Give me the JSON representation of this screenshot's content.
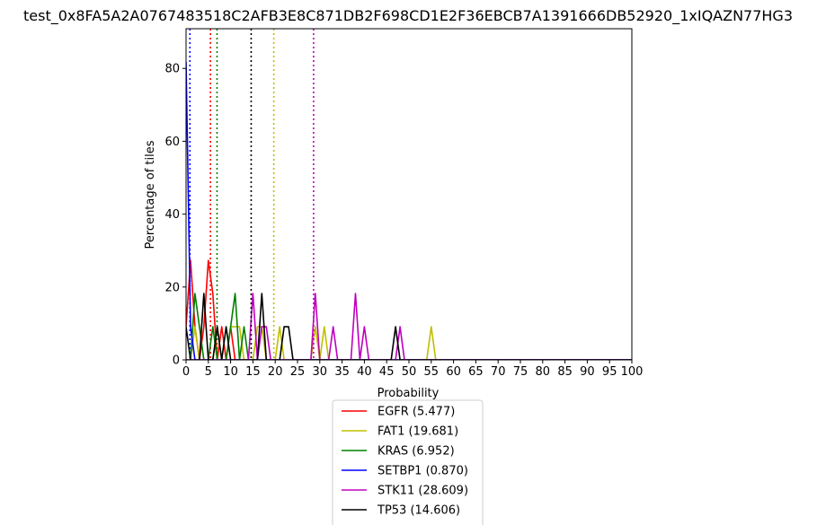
{
  "chart_data": {
    "type": "line",
    "title": "test_0x8FA5A2A0767483518C2AFB3E8C871DB2F698CD1E2F36EBCB7A1391666DB52920_1xIQAZN77HG3",
    "xlabel": "Probability",
    "ylabel": "Percentage of tiles",
    "xlim": [
      0,
      100
    ],
    "ylim": [
      0,
      90.9
    ],
    "xticks": [
      0,
      5,
      10,
      15,
      20,
      25,
      30,
      35,
      40,
      45,
      50,
      55,
      60,
      65,
      70,
      75,
      80,
      85,
      90,
      95,
      100
    ],
    "yticks": [
      0,
      20,
      40,
      60,
      80
    ],
    "grid": false,
    "legend_position": "below",
    "series": [
      {
        "name": "EGFR (5.477)",
        "color": "#ff0000",
        "mean": 5.477,
        "x": [
          0,
          1,
          2,
          3,
          4,
          5,
          6,
          7,
          8,
          9,
          10,
          11,
          12
        ],
        "y": [
          9.1,
          27.3,
          9.1,
          0,
          9.1,
          27.3,
          18.2,
          0,
          9.1,
          0,
          9.1,
          0,
          0
        ]
      },
      {
        "name": "FAT1 (19.681)",
        "color": "#bfbf00",
        "mean": 19.681,
        "x": [
          0,
          1,
          2,
          3,
          4,
          5,
          6,
          7,
          8,
          9,
          10,
          11,
          12,
          13,
          14,
          15,
          16,
          17,
          18,
          19,
          20,
          21,
          22,
          23,
          24,
          25,
          26,
          27,
          28,
          29,
          30,
          31,
          32,
          33,
          34,
          35,
          36,
          37,
          38,
          39,
          40,
          41,
          42,
          43,
          44,
          45,
          46,
          47,
          48,
          49,
          50,
          51,
          52,
          53,
          54,
          55,
          56,
          57,
          100
        ],
        "y": [
          0,
          0,
          9.1,
          0,
          0,
          0,
          0,
          9.1,
          0,
          0,
          9.1,
          9.1,
          9.1,
          0,
          0,
          0,
          9.1,
          9.1,
          0,
          0,
          0,
          9.1,
          0,
          0,
          0,
          0,
          0,
          0,
          0,
          9.1,
          0,
          9.1,
          0,
          0,
          0,
          0,
          0,
          0,
          0,
          0,
          0,
          0,
          0,
          0,
          0,
          0,
          0,
          0,
          0,
          0,
          0,
          0,
          0,
          0,
          0,
          9.1,
          0,
          0,
          0
        ]
      },
      {
        "name": "KRAS (6.952)",
        "color": "#008000",
        "mean": 6.952,
        "x": [
          0,
          1,
          2,
          3,
          4,
          5,
          6,
          7,
          8,
          9,
          10,
          11,
          12,
          13,
          14,
          15,
          100
        ],
        "y": [
          0,
          0,
          18.2,
          9.1,
          0,
          0,
          9.1,
          0,
          0,
          0,
          9.1,
          18.2,
          0,
          9.1,
          0,
          0,
          0
        ]
      },
      {
        "name": "SETBP1 (0.870)",
        "color": "#0000ff",
        "mean": 0.87,
        "x": [
          0,
          1,
          2,
          3,
          100
        ],
        "y": [
          81.8,
          9.1,
          0,
          0,
          0
        ]
      },
      {
        "name": "STK11 (28.609)",
        "color": "#bf00bf",
        "mean": 28.609,
        "x": [
          0,
          14,
          15,
          16,
          17,
          18,
          19,
          20,
          28,
          29,
          30,
          31,
          32,
          33,
          34,
          37,
          38,
          39,
          40,
          41,
          46,
          47,
          48,
          49,
          100
        ],
        "y": [
          0,
          0,
          18.2,
          0,
          9.1,
          9.1,
          0,
          0,
          0,
          18.2,
          0,
          0,
          0,
          9.1,
          0,
          0,
          18.2,
          0,
          9.1,
          0,
          0,
          0,
          9.1,
          0,
          0
        ]
      },
      {
        "name": "TP53 (14.606)",
        "color": "#000000",
        "mean": 14.606,
        "x": [
          0,
          1,
          2,
          3,
          4,
          5,
          6,
          7,
          8,
          9,
          10,
          11,
          12,
          13,
          14,
          15,
          16,
          17,
          18,
          19,
          20,
          21,
          22,
          23,
          24,
          45,
          46,
          47,
          48,
          100
        ],
        "y": [
          9.1,
          0,
          0,
          0,
          18.2,
          0,
          0,
          9.1,
          0,
          9.1,
          0,
          0,
          0,
          0,
          0,
          0,
          0,
          18.2,
          0,
          0,
          0,
          0,
          9.1,
          9.1,
          0,
          0,
          0,
          9.1,
          0,
          0
        ]
      }
    ]
  }
}
